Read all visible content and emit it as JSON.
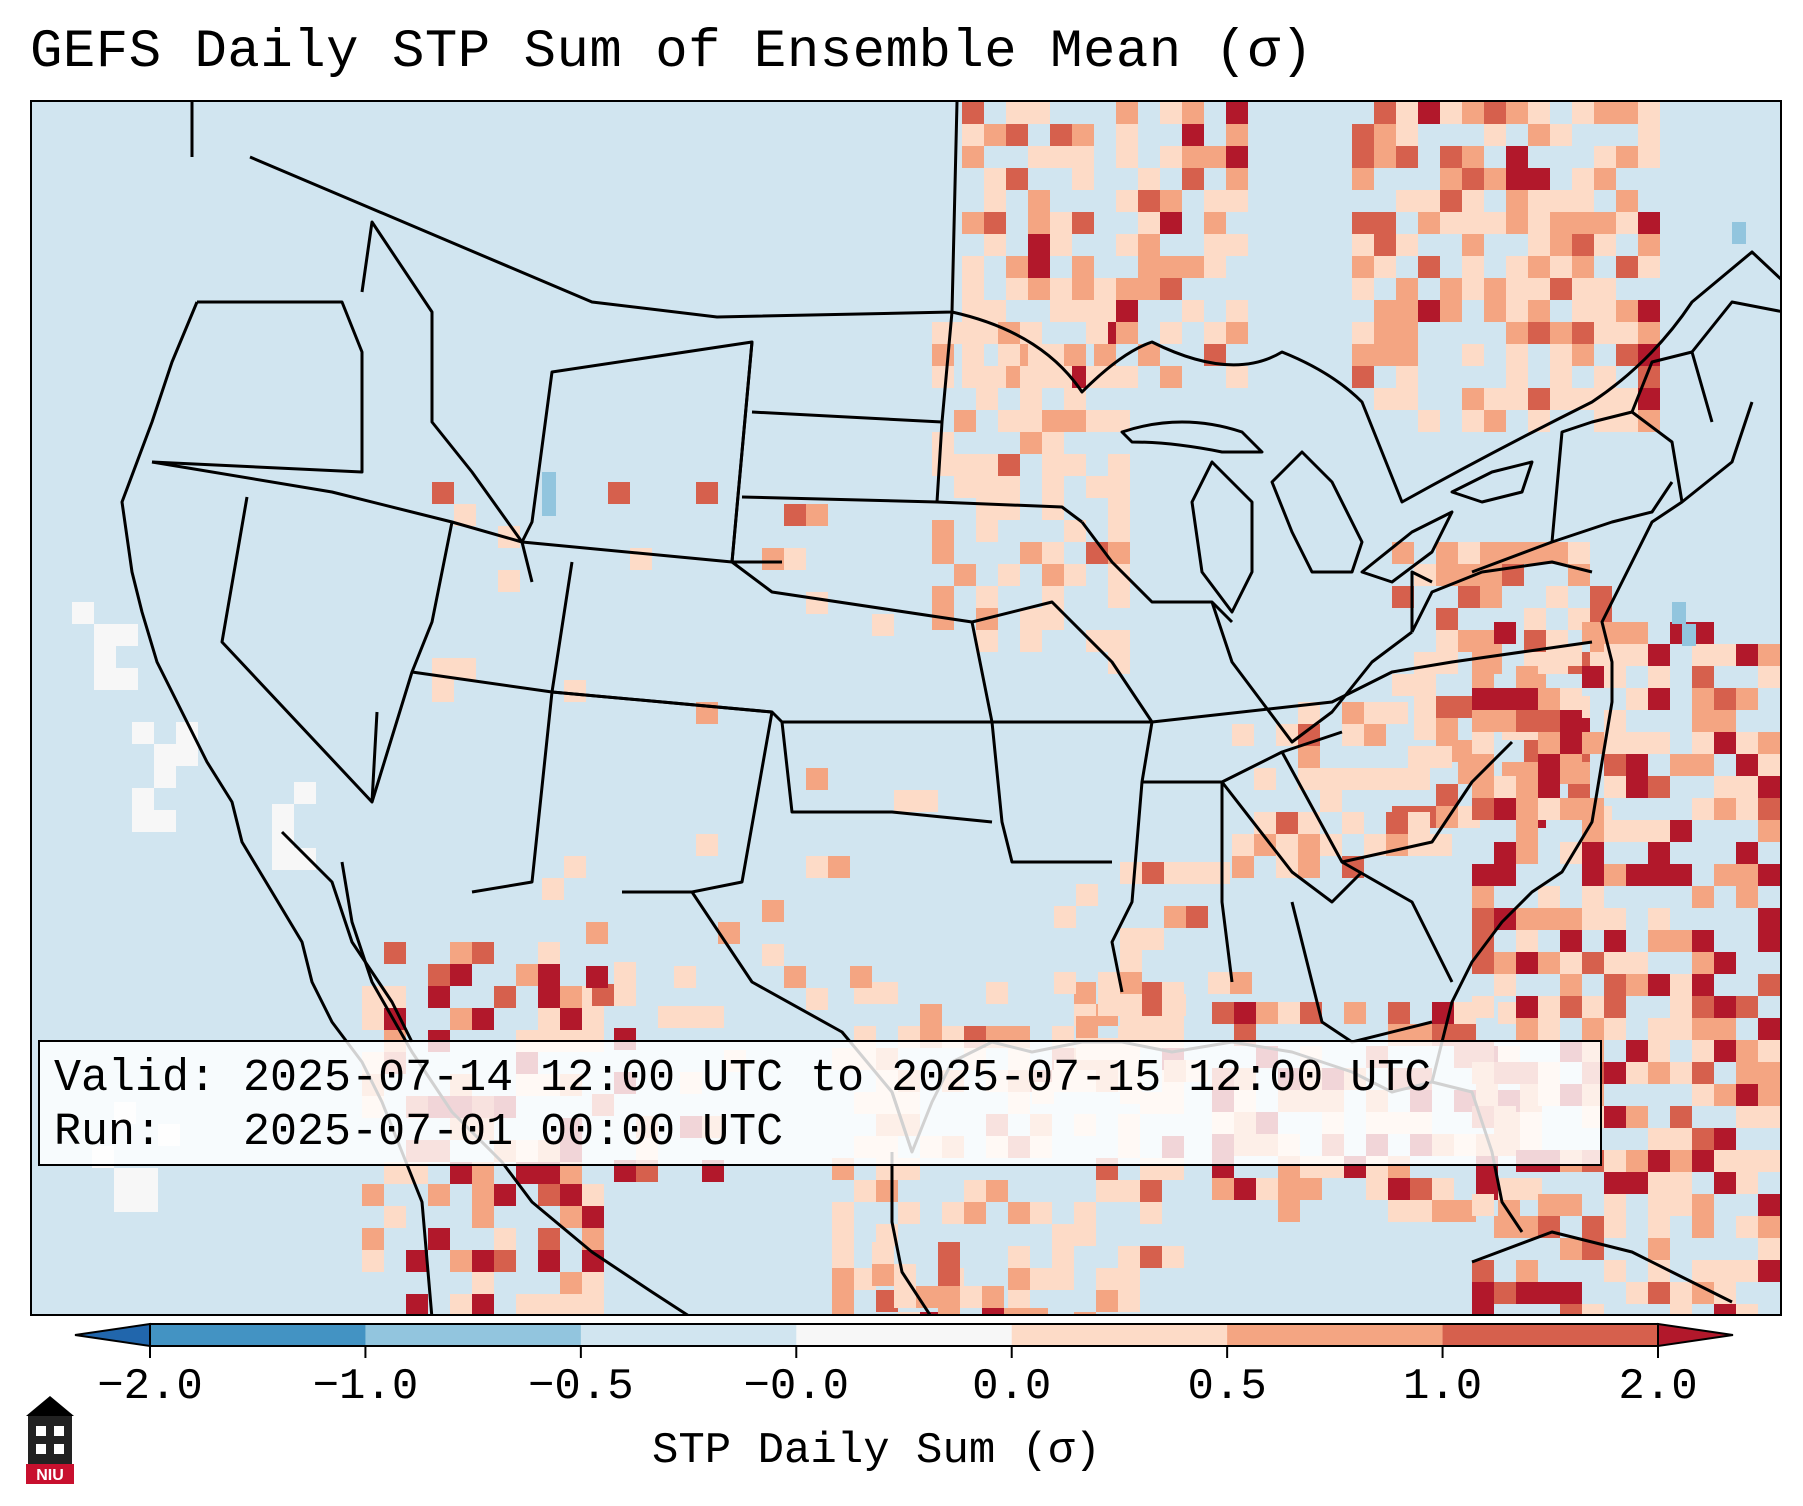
{
  "title": "GEFS Daily STP Sum of Ensemble Mean (σ)",
  "info": {
    "valid_label": "Valid:",
    "valid_value": "2025-07-14 12:00 UTC to 2025-07-15 12:00 UTC",
    "run_label": "Run:",
    "run_value": "2025-07-01 00:00 UTC"
  },
  "colorbar": {
    "label": "STP Daily Sum (σ)",
    "ticks": [
      "−2.0",
      "−1.0",
      "−0.5",
      "−0.0",
      "0.0",
      "0.5",
      "1.0",
      "2.0"
    ],
    "colors": [
      "#2166ac",
      "#4393c3",
      "#92c5de",
      "#d1e5f0",
      "#f7f7f7",
      "#fddbc7",
      "#f4a582",
      "#d6604d",
      "#b2182b"
    ]
  },
  "legend_colors": {
    "very_low": "#2166ac",
    "low": "#92c5de",
    "near_zero_neg": "#d1e5f0",
    "near_zero_pos": "#f7f7f7",
    "slight_pos": "#fddbc7",
    "moderate_pos": "#f4a582",
    "high_pos": "#d6604d",
    "very_high_pos": "#b2182b"
  },
  "logo": {
    "text": "NIU",
    "icon": "niu-tower-logo-icon"
  }
}
